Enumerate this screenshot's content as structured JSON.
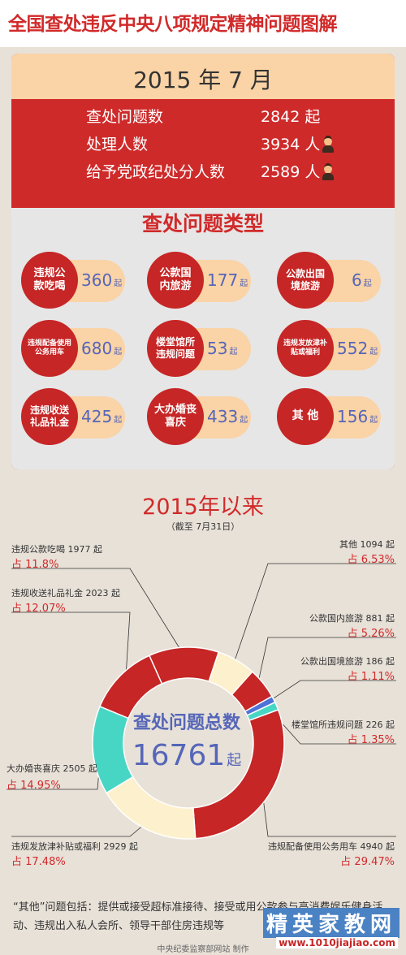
{
  "title": "全国查处违反中央八项规定精神问题图解",
  "month": {
    "header": "2015 年 7 月",
    "stats": [
      {
        "label": "查处问题数",
        "value": "2842 起"
      },
      {
        "label": "处理人数",
        "value": "3934 人"
      },
      {
        "label": "给予党政纪处分人数",
        "value": "2589 人"
      }
    ],
    "types_title": "查处问题类型",
    "types": [
      {
        "name": "违规公款吃喝",
        "value": "360",
        "unit": "起"
      },
      {
        "name": "公款国内旅游",
        "value": "177",
        "unit": "起"
      },
      {
        "name": "公款出国境旅游",
        "value": "6",
        "unit": "起"
      },
      {
        "name": "违规配备使用公务用车",
        "value": "680",
        "unit": "起"
      },
      {
        "name": "楼堂馆所违规问题",
        "value": "53",
        "unit": "起"
      },
      {
        "name": "违规发放津补贴或福利",
        "value": "552",
        "unit": "起"
      },
      {
        "name": "违规收送礼品礼金",
        "value": "425",
        "unit": "起"
      },
      {
        "name": "大办婚丧喜庆",
        "value": "433",
        "unit": "起"
      },
      {
        "name": "其 他",
        "value": "156",
        "unit": "起"
      }
    ]
  },
  "since": {
    "title": "2015年以来",
    "subtitle": "（截至 7月31日）",
    "center_label": "查处问题总数",
    "center_value": "16761",
    "center_unit": "起"
  },
  "chart_data": {
    "type": "pie",
    "variant": "donut",
    "categories": [
      "违规公款吃喝",
      "其他",
      "公款国内旅游",
      "公款出国境旅游",
      "楼堂馆所违规问题",
      "违规配备使用公务用车",
      "违规发放津补贴或福利",
      "大办婚丧喜庆",
      "违规收送礼品礼金"
    ],
    "values": [
      1977,
      1094,
      881,
      186,
      226,
      4940,
      2929,
      2505,
      2023
    ],
    "labels": [
      {
        "text": "违规公款吃喝 1977 起",
        "pct": "占 11.8%"
      },
      {
        "text": "其他 1094 起",
        "pct": "占 6.53%"
      },
      {
        "text": "公款国内旅游 881 起",
        "pct": "占 5.26%"
      },
      {
        "text": "公款出国境旅游 186 起",
        "pct": "占 1.11%"
      },
      {
        "text": "楼堂馆所违规问题 226 起",
        "pct": "占 1.35%"
      },
      {
        "text": "违规配备使用公务用车 4940 起",
        "pct": "占 29.47%"
      },
      {
        "text": "违规发放津补贴或福利 2929 起",
        "pct": "占 17.48%"
      },
      {
        "text": "大办婚丧喜庆 2505 起",
        "pct": "占 14.95%"
      },
      {
        "text": "违规收送礼品礼金 2023 起",
        "pct": "占 12.07%"
      }
    ],
    "colors": [
      "#c62626",
      "#fdf0cc",
      "#c62626",
      "#4f72d8",
      "#48d6c4",
      "#c62626",
      "#fdf0cc",
      "#48d6c4",
      "#c62626"
    ]
  },
  "note": "“其他”问题包括：提供或接受超标准接待、接受或用公款参与高消费娱乐健身活动、违规出入私人会所、领导干部住房违规等",
  "credit": "中央纪委监察部网站 制作",
  "watermark": {
    "main": "精英家教网",
    "url": "www.1010jiajiao.com"
  }
}
